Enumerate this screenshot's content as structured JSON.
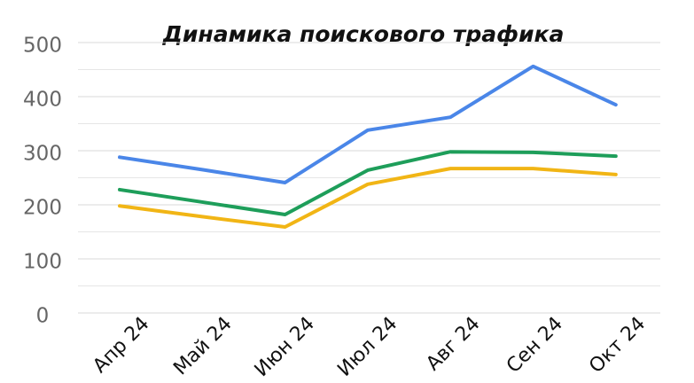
{
  "chart_data": {
    "type": "line",
    "title": "Динамика поискового трафика",
    "categories": [
      "Апр 24",
      "Май 24",
      "Июн 24",
      "Июл 24",
      "Авг 24",
      "Сен 24",
      "Окт 24"
    ],
    "series": [
      {
        "color": "#4a86e8",
        "values": [
          288,
          265,
          241,
          338,
          362,
          456,
          385
        ]
      },
      {
        "color": "#1e9e5a",
        "values": [
          228,
          205,
          182,
          264,
          298,
          297,
          290
        ]
      },
      {
        "color": "#f1b515",
        "values": [
          198,
          178,
          159,
          238,
          267,
          267,
          256
        ]
      }
    ],
    "ylim": [
      0,
      500
    ],
    "yticks": [
      0,
      100,
      200,
      300,
      400,
      500
    ],
    "minor_yticks": [
      50,
      150,
      250,
      350,
      450
    ],
    "grid": true
  }
}
